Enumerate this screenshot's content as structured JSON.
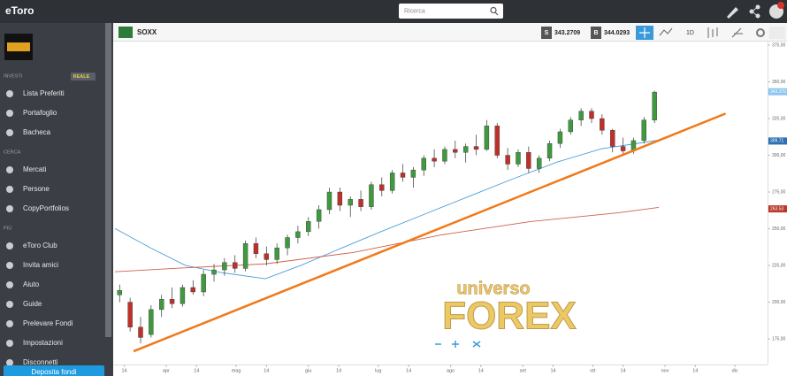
{
  "topbar": {
    "logo": "eToro",
    "search_placeholder": "Ricerca"
  },
  "sidebar": {
    "account_mode": "REALE",
    "sections": [
      {
        "title": "INVESTI",
        "items": [
          "Lista Preferiti",
          "Portafoglio",
          "Bacheca"
        ]
      },
      {
        "title": "CERCA",
        "items": [
          "Mercati",
          "Persone",
          "CopyPortfolios"
        ]
      },
      {
        "title": "PIÙ",
        "items": [
          "eToro Club",
          "Invita amici",
          "Aiuto",
          "Guide",
          "Prelevare Fondi",
          "Impostazioni",
          "Disconnetti"
        ]
      }
    ],
    "deposit_button": "Deposita fondi"
  },
  "chart_header": {
    "symbol": "SOXX",
    "sell_label": "S",
    "sell_price": 343.2709,
    "buy_label": "B",
    "buy_price": 344.0293,
    "timeframe": "1D"
  },
  "watermark": {
    "line1": "universo",
    "line2": "FOREX"
  },
  "chart_data": {
    "type": "candlestick",
    "up_color": "#3f9a3f",
    "down_color": "#c0302b",
    "xlim": [
      -22,
      258
    ],
    "ylim": [
      157.6,
      377.4
    ],
    "xticks": [
      {
        "value": -18,
        "label": "14"
      },
      {
        "value": 0,
        "label": "apr"
      },
      {
        "value": 13,
        "label": "14"
      },
      {
        "value": 30,
        "label": "mag"
      },
      {
        "value": 43,
        "label": "14"
      },
      {
        "value": 61,
        "label": "giu"
      },
      {
        "value": 74,
        "label": "14"
      },
      {
        "value": 91,
        "label": "lug"
      },
      {
        "value": 104,
        "label": "14"
      },
      {
        "value": 122,
        "label": "ago"
      },
      {
        "value": 135,
        "label": "14"
      },
      {
        "value": 153,
        "label": "set"
      },
      {
        "value": 166,
        "label": "14"
      },
      {
        "value": 183,
        "label": "ott"
      },
      {
        "value": 196,
        "label": "14"
      },
      {
        "value": 214,
        "label": "nov"
      },
      {
        "value": 227,
        "label": "14"
      },
      {
        "value": 244,
        "label": "dic"
      }
    ],
    "yticks": [
      {
        "value": 175,
        "label": "175,00"
      },
      {
        "value": 200,
        "label": "200,00"
      },
      {
        "value": 225,
        "label": "225,00"
      },
      {
        "value": 250,
        "label": "250,00"
      },
      {
        "value": 275,
        "label": "275,00"
      },
      {
        "value": 300,
        "label": "300,00"
      },
      {
        "value": 325,
        "label": "325,00"
      },
      {
        "value": 350,
        "label": "350,00"
      },
      {
        "value": 375,
        "label": "375,00"
      }
    ],
    "candles": [
      [
        -20,
        205,
        212,
        200,
        208
      ],
      [
        -15.5,
        200,
        203,
        180,
        183
      ],
      [
        -11,
        183,
        190,
        172,
        176
      ],
      [
        -6.5,
        178,
        198,
        176,
        195
      ],
      [
        -2,
        195,
        205,
        190,
        202
      ],
      [
        2.5,
        202,
        210,
        196,
        199
      ],
      [
        7,
        199,
        212,
        197,
        210
      ],
      [
        11.5,
        210,
        215,
        205,
        207
      ],
      [
        16,
        207,
        222,
        204,
        219
      ],
      [
        20.5,
        219,
        226,
        214,
        222
      ],
      [
        25,
        222,
        230,
        218,
        227
      ],
      [
        29.5,
        227,
        232,
        220,
        223
      ],
      [
        34,
        223,
        242,
        221,
        240
      ],
      [
        38.5,
        240,
        244,
        230,
        233
      ],
      [
        43,
        233,
        238,
        225,
        229
      ],
      [
        47.5,
        229,
        240,
        226,
        237
      ],
      [
        52,
        237,
        246,
        232,
        244
      ],
      [
        56.5,
        244,
        252,
        240,
        248
      ],
      [
        61,
        248,
        258,
        245,
        255
      ],
      [
        65.5,
        255,
        266,
        250,
        263
      ],
      [
        70,
        263,
        278,
        260,
        275
      ],
      [
        74.5,
        275,
        278,
        262,
        266
      ],
      [
        79,
        266,
        272,
        258,
        270
      ],
      [
        83.5,
        270,
        276,
        262,
        265
      ],
      [
        88,
        265,
        282,
        263,
        280
      ],
      [
        92.5,
        280,
        285,
        272,
        276
      ],
      [
        97,
        276,
        290,
        274,
        288
      ],
      [
        101.5,
        288,
        294,
        282,
        285
      ],
      [
        106,
        285,
        292,
        278,
        290
      ],
      [
        110.5,
        290,
        300,
        286,
        298
      ],
      [
        115,
        298,
        304,
        292,
        296
      ],
      [
        119.5,
        296,
        306,
        294,
        304
      ],
      [
        124,
        304,
        310,
        298,
        302
      ],
      [
        128.5,
        302,
        308,
        295,
        306
      ],
      [
        133,
        306,
        314,
        300,
        304
      ],
      [
        137.5,
        304,
        324,
        303,
        320
      ],
      [
        142,
        320,
        322,
        298,
        300
      ],
      [
        146.5,
        300,
        305,
        290,
        294
      ],
      [
        151,
        294,
        304,
        292,
        302
      ],
      [
        155.5,
        302,
        306,
        288,
        291
      ],
      [
        160,
        291,
        300,
        288,
        298
      ],
      [
        164.5,
        298,
        310,
        296,
        308
      ],
      [
        169,
        308,
        318,
        305,
        316
      ],
      [
        173.5,
        316,
        326,
        314,
        324
      ],
      [
        178,
        324,
        332,
        320,
        330
      ],
      [
        182.5,
        330,
        332,
        322,
        325
      ],
      [
        187,
        325,
        328,
        314,
        317
      ],
      [
        191.5,
        317,
        318,
        302,
        306
      ],
      [
        196,
        306,
        312,
        300,
        303
      ],
      [
        200.5,
        303,
        312,
        301,
        310
      ],
      [
        205,
        310,
        326,
        308,
        324
      ],
      [
        209.5,
        324,
        344,
        322,
        343
      ]
    ],
    "moving_averages": [
      {
        "color": "#4a9fd8",
        "x": [
          -22,
          -6.8,
          8.3,
          23.5,
          42.5,
          57.7,
          72.8,
          91.8,
          110.8,
          129.7,
          148.7,
          167.7,
          186.7,
          201.8,
          211.3
        ],
        "y": [
          250.2,
          237.0,
          225.0,
          220.2,
          216.0,
          225.0,
          235.2,
          247.8,
          259.9,
          271.9,
          283.9,
          295.4,
          304.4,
          308.0,
          310.4
        ]
      },
      {
        "color": "#d0604a",
        "x": [
          -22,
          4.6,
          42.5,
          80.4,
          118.4,
          156.3,
          194.2,
          211.3
        ],
        "y": [
          220.7,
          223.1,
          226.1,
          233.9,
          245.9,
          254.9,
          260.9,
          264.5
        ]
      }
    ],
    "trendline": {
      "color": "#f07a1a",
      "x": [
        -14,
        240
      ],
      "y": [
        166.6,
        328.4
      ]
    },
    "price_markers": [
      {
        "value": 343.27,
        "label": "343.270",
        "color": "#8cc6ee"
      },
      {
        "value": 309.71,
        "color": "#2f6fb3"
      },
      {
        "value": 263.53,
        "color": "#b83a2a"
      }
    ]
  }
}
